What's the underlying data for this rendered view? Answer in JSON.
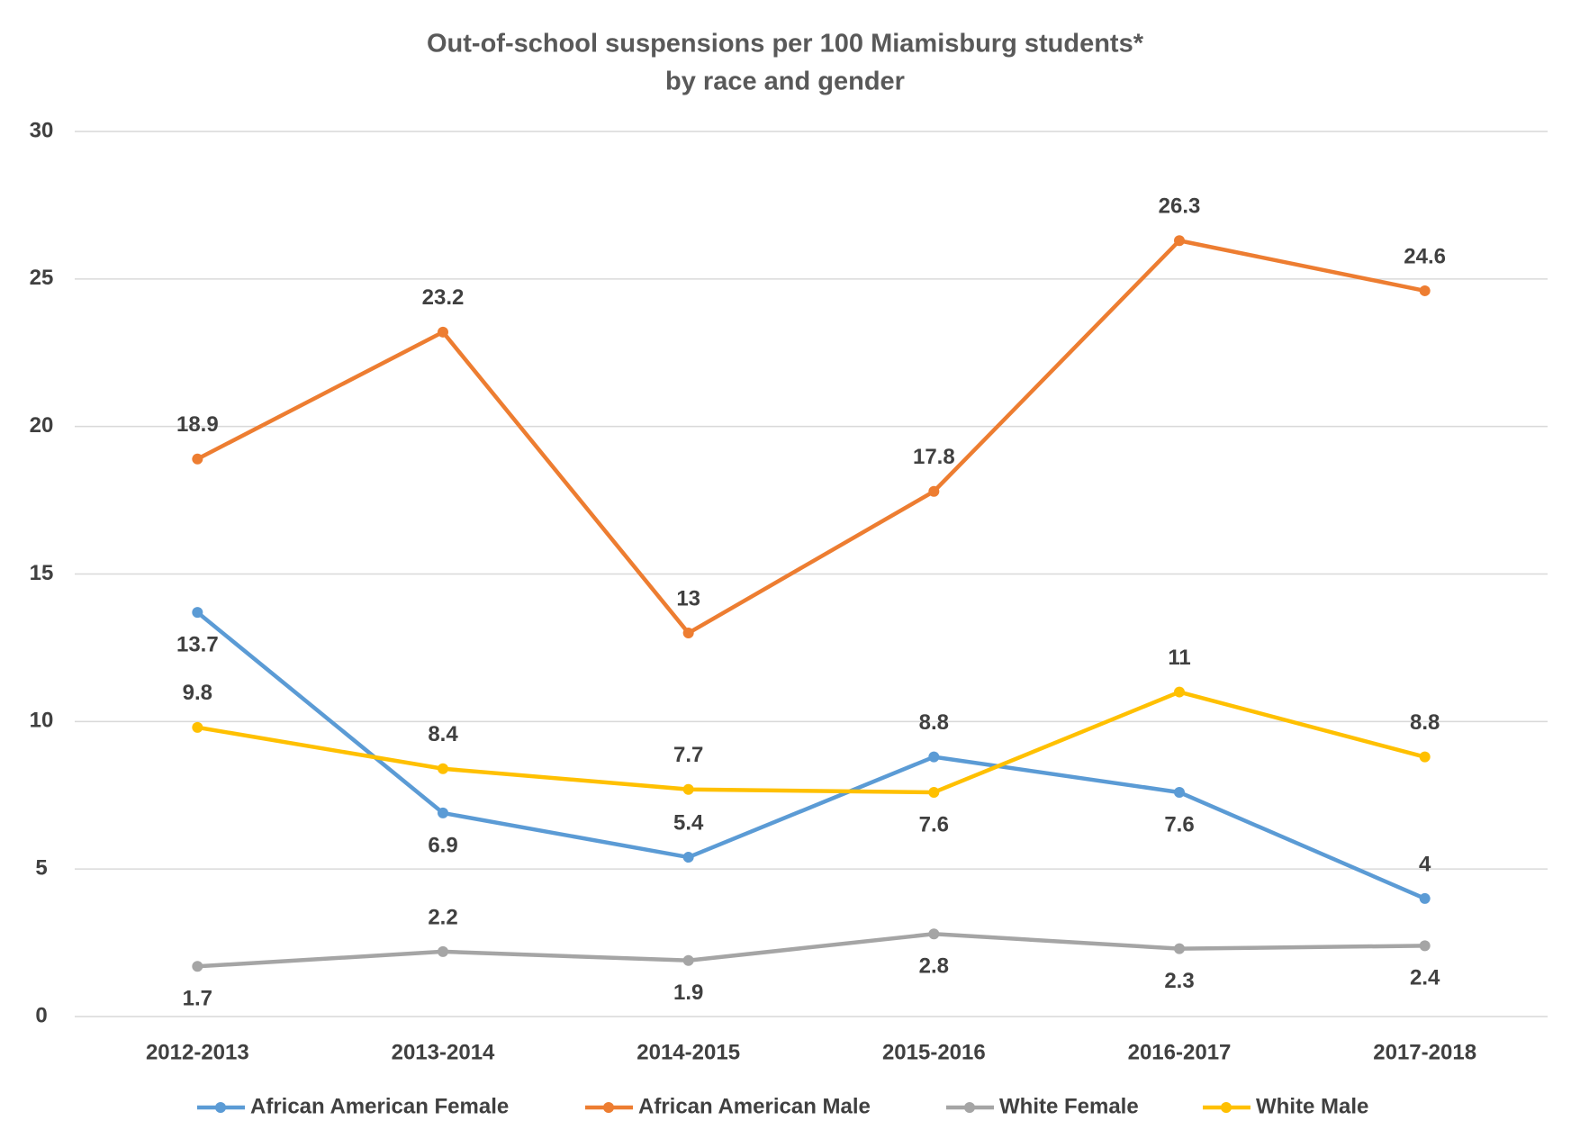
{
  "chart_data": {
    "type": "line",
    "title": "Out-of-school suspensions per 100 Miamisburg students*",
    "subtitle": "by race and gender",
    "categories": [
      "2012-2013",
      "2013-2014",
      "2014-2015",
      "2015-2016",
      "2016-2017",
      "2017-2018"
    ],
    "series": [
      {
        "name": "African American Female",
        "color": "#5b9bd5",
        "values": [
          13.7,
          6.9,
          5.4,
          8.8,
          7.6,
          4
        ]
      },
      {
        "name": "African American Male",
        "color": "#ed7d31",
        "values": [
          18.9,
          23.2,
          13,
          17.8,
          26.3,
          24.6
        ]
      },
      {
        "name": "White Female",
        "color": "#a5a5a5",
        "values": [
          1.7,
          2.2,
          1.9,
          2.8,
          2.3,
          2.4
        ]
      },
      {
        "name": "White Male",
        "color": "#ffc000",
        "values": [
          9.8,
          8.4,
          7.7,
          7.6,
          11,
          8.8
        ]
      }
    ],
    "ylim": [
      0,
      30
    ],
    "yticks": [
      0,
      5,
      10,
      15,
      20,
      25,
      30
    ],
    "grid": true,
    "legend": "bottom"
  }
}
